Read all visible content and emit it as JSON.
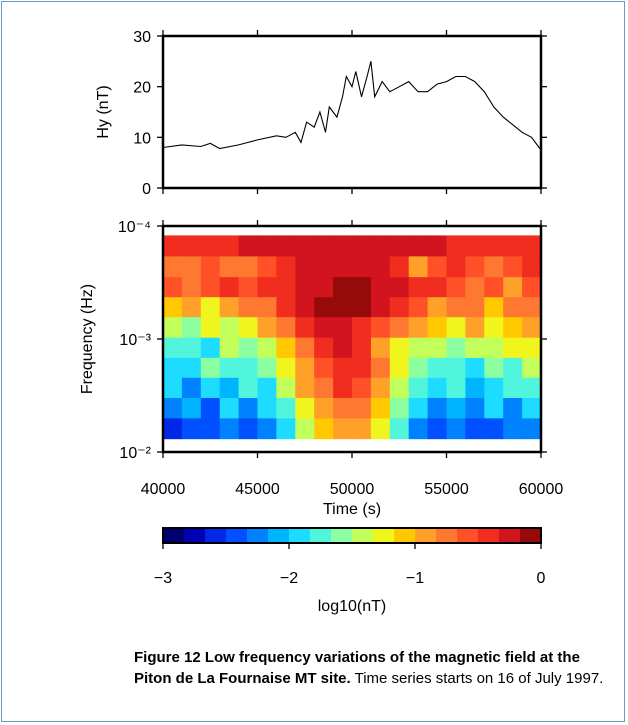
{
  "chart_data": [
    {
      "type": "line",
      "ylabel": "Hy (nT)",
      "x": [
        40000,
        41000,
        42000,
        42500,
        43000,
        44000,
        45000,
        46000,
        46500,
        47000,
        47300,
        47600,
        48000,
        48300,
        48600,
        48800,
        49200,
        49500,
        49700,
        50000,
        50200,
        50500,
        50800,
        51000,
        51200,
        51600,
        52000,
        52500,
        53000,
        53500,
        54000,
        54500,
        55000,
        55500,
        56000,
        56500,
        57000,
        57500,
        58000,
        58500,
        59000,
        59500,
        60000
      ],
      "series": [
        {
          "color": "#000000",
          "values": [
            8,
            8.5,
            8.2,
            8.8,
            7.8,
            8.5,
            9.5,
            10.3,
            10,
            11,
            9,
            13,
            12,
            15,
            11,
            16,
            14,
            18,
            22,
            20,
            23,
            18,
            22,
            25,
            18,
            21,
            19,
            20,
            21,
            19,
            19,
            20.5,
            21,
            22,
            22,
            21,
            19,
            16,
            14,
            12.5,
            11,
            10,
            7.5
          ]
        }
      ],
      "xlim": [
        40000,
        60000
      ],
      "xticks": [
        40000,
        45000,
        50000,
        55000,
        60000
      ],
      "ylim": [
        0,
        30
      ],
      "yticks": [
        0,
        10,
        20,
        30
      ]
    },
    {
      "type": "heatmap",
      "xlabel": "Time (s)",
      "ylabel": "Frequency (Hz)",
      "x": [
        40500,
        41500,
        42500,
        43500,
        44500,
        45500,
        46500,
        47500,
        48500,
        49500,
        50500,
        51500,
        52500,
        53500,
        54500,
        55500,
        56500,
        57500,
        58500,
        59500
      ],
      "y": [
        0.00015,
        0.00023,
        0.00035,
        0.00052,
        0.00079,
        0.0012,
        0.0018,
        0.0027,
        0.0041,
        0.0062
      ],
      "z": [
        [
          -0.4,
          -0.4,
          -0.35,
          -0.35,
          -0.3,
          -0.3,
          -0.3,
          -0.25,
          -0.25,
          -0.25,
          -0.25,
          -0.25,
          -0.3,
          -0.3,
          -0.3,
          -0.35,
          -0.35,
          -0.4,
          -0.4,
          -0.4
        ],
        [
          -0.8,
          -0.7,
          -0.6,
          -0.7,
          -0.8,
          -0.6,
          -0.4,
          -0.3,
          -0.25,
          -0.2,
          -0.25,
          -0.3,
          -0.5,
          -0.9,
          -0.6,
          -0.5,
          -0.6,
          -0.7,
          -0.6,
          -0.5
        ],
        [
          -0.6,
          -0.7,
          -0.6,
          -0.5,
          -0.6,
          -0.5,
          -0.4,
          -0.3,
          -0.2,
          -0.1,
          -0.1,
          -0.2,
          -0.3,
          -0.4,
          -0.5,
          -0.6,
          -0.7,
          -0.6,
          -0.9,
          -0.6
        ],
        [
          -1.1,
          -1.0,
          -1.2,
          -0.9,
          -0.8,
          -0.7,
          -0.5,
          -0.3,
          -0.15,
          -0.05,
          -0.1,
          -0.3,
          -0.5,
          -0.6,
          -0.9,
          -0.7,
          -0.8,
          -1.1,
          -0.8,
          -0.7
        ],
        [
          -1.4,
          -1.6,
          -1.3,
          -1.4,
          -1.2,
          -1.0,
          -0.8,
          -0.5,
          -0.3,
          -0.2,
          -0.4,
          -0.6,
          -0.7,
          -0.9,
          -1.1,
          -1.3,
          -1.0,
          -1.2,
          -1.1,
          -0.9
        ],
        [
          -1.8,
          -1.7,
          -1.9,
          -1.5,
          -1.6,
          -1.4,
          -1.1,
          -0.7,
          -0.4,
          -0.3,
          -0.5,
          -0.9,
          -1.2,
          -1.4,
          -1.5,
          -1.6,
          -1.4,
          -1.5,
          -1.3,
          -1.2
        ],
        [
          -1.9,
          -2.0,
          -1.6,
          -1.8,
          -1.7,
          -1.6,
          -1.3,
          -0.9,
          -0.6,
          -0.4,
          -0.5,
          -0.8,
          -1.3,
          -1.6,
          -1.8,
          -1.7,
          -1.9,
          -1.6,
          -1.7,
          -1.5
        ],
        [
          -2.0,
          -2.2,
          -1.9,
          -2.1,
          -1.8,
          -1.9,
          -1.5,
          -1.0,
          -0.7,
          -0.5,
          -0.6,
          -0.9,
          -1.4,
          -1.8,
          -2.0,
          -1.8,
          -2.1,
          -1.9,
          -1.8,
          -1.7
        ],
        [
          -2.3,
          -2.1,
          -2.4,
          -2.0,
          -2.2,
          -2.0,
          -1.7,
          -1.2,
          -0.9,
          -0.7,
          -0.8,
          -1.1,
          -1.6,
          -2.0,
          -2.2,
          -2.1,
          -2.3,
          -2.0,
          -2.2,
          -1.9
        ],
        [
          -2.6,
          -2.4,
          -2.5,
          -2.3,
          -2.5,
          -2.2,
          -1.9,
          -1.4,
          -1.1,
          -0.9,
          -1.0,
          -1.3,
          -1.8,
          -2.2,
          -2.4,
          -2.3,
          -2.5,
          -2.4,
          -2.3,
          -2.2
        ]
      ],
      "xlim": [
        40000,
        60000
      ],
      "xticks": [
        40000,
        45000,
        50000,
        55000,
        60000
      ],
      "yscale": "log",
      "ylim": [
        0.01,
        0.0001
      ],
      "yticks": [
        {
          "value": 0.0001,
          "label": "10⁻⁴"
        },
        {
          "value": 0.001,
          "label": "10⁻³"
        },
        {
          "value": 0.01,
          "label": "10⁻²"
        }
      ],
      "colorbar": {
        "label": "log10(nT)",
        "clim": [
          -3,
          0
        ],
        "ticks": [
          {
            "value": -3,
            "label": "−3"
          },
          {
            "value": -2,
            "label": "−2"
          },
          {
            "value": -1,
            "label": "−1"
          },
          0
        ],
        "colors": [
          "#00006e",
          "#0000b4",
          "#0028e6",
          "#0050ff",
          "#0082ff",
          "#00b4ff",
          "#1edcff",
          "#50f5dc",
          "#8cffa0",
          "#c3ff5a",
          "#f0f51e",
          "#ffc800",
          "#ffa028",
          "#ff7832",
          "#ff5028",
          "#f02d1e",
          "#d2141e",
          "#960a0a"
        ]
      }
    }
  ],
  "caption": {
    "label": "Figure 12",
    "title": "Low frequency variations of the magnetic field at the Piton de La Fournaise MT site.",
    "text": "Time series starts on 16 of July 1997."
  }
}
